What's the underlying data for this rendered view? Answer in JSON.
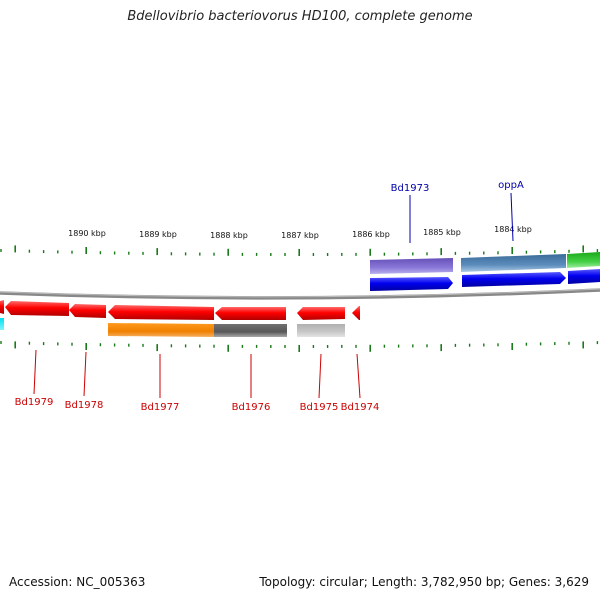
{
  "title": "Bdellovibrio bacteriovorus HD100, complete genome",
  "accession": "Accession: NC_005363",
  "topology": "Topology: circular; Length: 3,782,950 bp; Genes: 3,629",
  "kbp_labels": [
    "1890 kbp",
    "1889 kbp",
    "1888 kbp",
    "1887 kbp",
    "1886 kbp",
    "1885 kbp",
    "1884 kbp"
  ],
  "forward_gene_labels": [
    "Bd1973",
    "oppA"
  ],
  "reverse_gene_labels": [
    "Bd1979",
    "Bd1978",
    "Bd1977",
    "Bd1976",
    "Bd1975",
    "Bd1974"
  ],
  "colors": {
    "forward_label": "#0000aa",
    "reverse_label": "#cc0000",
    "tick": "#1a7a1a",
    "backbone": "#888888",
    "cds_forward": "#0000ee",
    "cds_reverse": "#ee0000"
  }
}
